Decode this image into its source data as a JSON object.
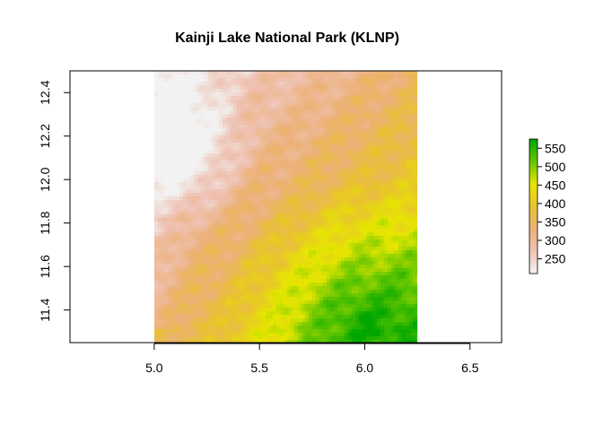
{
  "chart_data": {
    "type": "heatmap",
    "title": "Kainji Lake National Park (KLNP)",
    "xlim": [
      4.6,
      6.65
    ],
    "ylim": [
      11.25,
      12.5
    ],
    "raster_extent": {
      "x": [
        5.0,
        6.25
      ],
      "y": [
        11.25,
        12.5
      ]
    },
    "x_ticks": [
      5.0,
      5.5,
      6.0,
      6.5
    ],
    "x_tick_labels": [
      "5.0",
      "5.5",
      "6.0",
      "6.5"
    ],
    "y_ticks": [
      11.4,
      11.6,
      11.8,
      12.0,
      12.2,
      12.4
    ],
    "y_tick_labels": [
      "11.4",
      "11.6",
      "11.8",
      "12.0",
      "12.2",
      "12.4"
    ],
    "legend": {
      "placement": "right",
      "range": [
        210,
        575
      ],
      "ticks": [
        250,
        300,
        350,
        400,
        450,
        500,
        550
      ],
      "tick_labels": [
        "250",
        "300",
        "350",
        "400",
        "450",
        "500",
        "550"
      ],
      "colors": [
        "#F2F2F2",
        "#EFC2B3",
        "#ECB176",
        "#E8C32E",
        "#E6E600",
        "#63C600",
        "#00A600"
      ]
    },
    "elevation_description": {
      "low_region": "north-west (~210-260)",
      "mid_region": "west and north (~280-350)",
      "high_region": "south-east (~500-575)"
    },
    "grid": false
  }
}
